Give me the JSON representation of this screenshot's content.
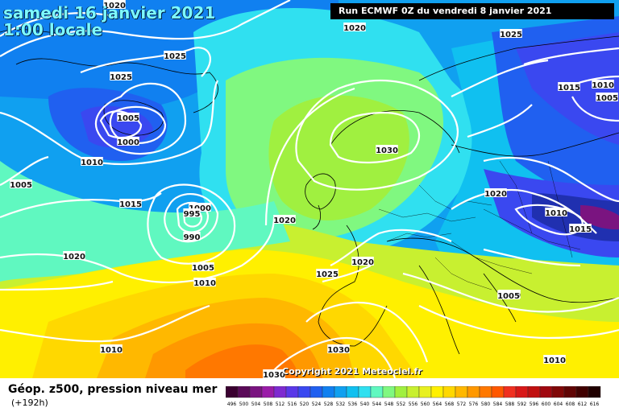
{
  "header": {
    "date_line1": "samedi 16 janvier 2021",
    "date_line2": "1:00 locale",
    "run": "Run ECMWF 0Z du vendredi 8 janvier 2021"
  },
  "footer": {
    "parameter": "Géop. z500, pression niveau mer",
    "lead_time": "(+192h)",
    "copyright": "Copyright 2021 Meteociel.fr"
  },
  "legend": {
    "values": [
      "496",
      "500",
      "504",
      "508",
      "512",
      "516",
      "520",
      "524",
      "528",
      "532",
      "536",
      "540",
      "544",
      "548",
      "552",
      "556",
      "560",
      "564",
      "568",
      "572",
      "576",
      "580",
      "584",
      "588",
      "592",
      "596",
      "600",
      "604",
      "608",
      "612",
      "616"
    ],
    "colors": [
      "#3a0030",
      "#5a0a58",
      "#7a1480",
      "#9a1ca8",
      "#7e2ad0",
      "#5a38e8",
      "#3a48f0",
      "#2060f0",
      "#1080f0",
      "#10a0f0",
      "#10c0f0",
      "#30e0f0",
      "#60f8c0",
      "#80f880",
      "#a0f040",
      "#c8f030",
      "#e8f020",
      "#fff000",
      "#ffd800",
      "#ffb800",
      "#ff9800",
      "#ff7800",
      "#ff5800",
      "#f03020",
      "#d81818",
      "#c01010",
      "#a00810",
      "#800808",
      "#600404",
      "#400000",
      "#200000"
    ]
  },
  "isobars": [
    {
      "label": "1020",
      "role": "isobar-1020-north"
    },
    {
      "label": "1020",
      "role": "isobar-1020-topleft"
    },
    {
      "label": "1025",
      "role": "isobar-1025-topright"
    },
    {
      "label": "1025",
      "role": "isobar-1025-greenland"
    },
    {
      "label": "1025",
      "role": "isobar-1025-iceland"
    },
    {
      "label": "1005",
      "role": "isobar-1005-low1"
    },
    {
      "label": "1000",
      "role": "isobar-1000-low1"
    },
    {
      "label": "1010",
      "role": "isobar-1010-west"
    },
    {
      "label": "1005",
      "role": "isobar-1005-west"
    },
    {
      "label": "1015",
      "role": "isobar-1015-west"
    },
    {
      "label": "1000",
      "role": "isobar-1000-low2"
    },
    {
      "label": "995",
      "role": "isobar-995-low2"
    },
    {
      "label": "990",
      "role": "isobar-990-low2"
    },
    {
      "label": "1005",
      "role": "isobar-1005-low2"
    },
    {
      "label": "1010",
      "role": "isobar-1010-low2"
    },
    {
      "label": "1020",
      "role": "isobar-1020-atlantic"
    },
    {
      "label": "1020",
      "role": "isobar-1020-mid"
    },
    {
      "label": "1030",
      "role": "isobar-1030-high"
    },
    {
      "label": "1020",
      "role": "isobar-1020-france"
    },
    {
      "label": "1025",
      "role": "isobar-1025-iberia"
    },
    {
      "label": "1030",
      "role": "isobar-1030-south"
    },
    {
      "label": "1030",
      "role": "isobar-1030-bottom"
    },
    {
      "label": "1010",
      "role": "isobar-1010-southwest"
    },
    {
      "label": "1020",
      "role": "isobar-1020-east"
    },
    {
      "label": "1010",
      "role": "isobar-1010-east1"
    },
    {
      "label": "1015",
      "role": "isobar-1015-east"
    },
    {
      "label": "1010",
      "role": "isobar-1010-east2"
    },
    {
      "label": "1010",
      "role": "isobar-1010-balkans"
    },
    {
      "label": "1015",
      "role": "isobar-1015-southeast"
    },
    {
      "label": "1010",
      "role": "isobar-1010-ne"
    },
    {
      "label": "1005",
      "role": "isobar-1005-ne1"
    },
    {
      "label": "1005",
      "role": "isobar-1005-ne2"
    }
  ]
}
